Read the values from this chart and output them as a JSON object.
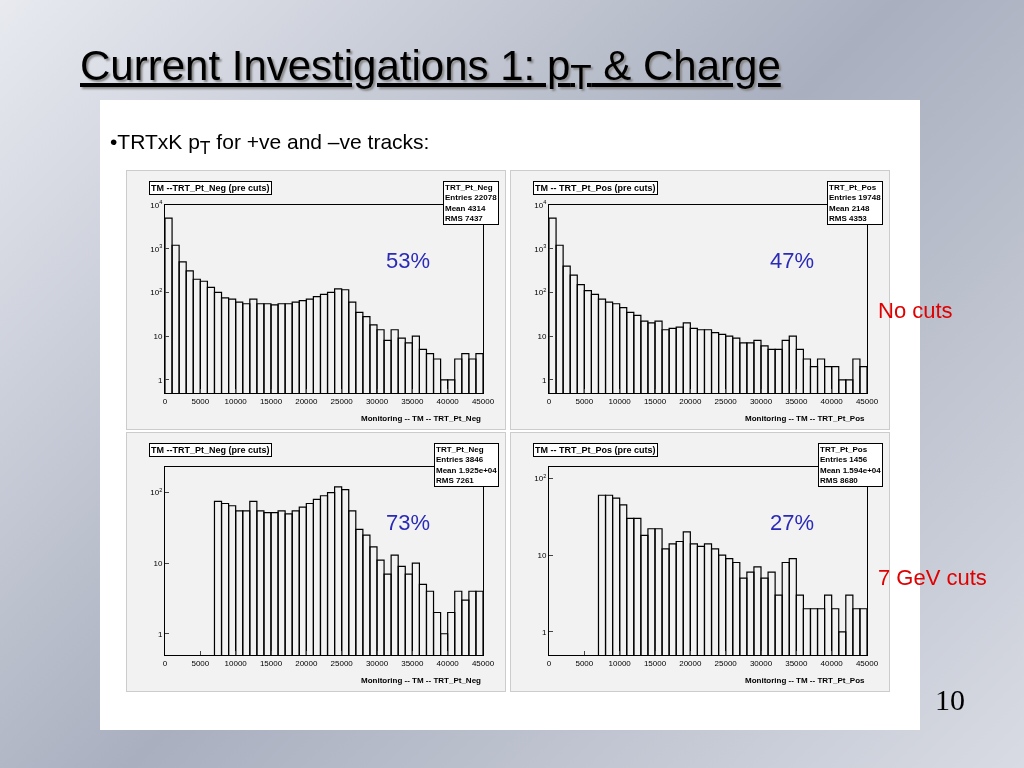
{
  "chart_data": [
    {
      "type": "other",
      "title": "Current Investigations 1: p$_{T}$ & Charge",
      "subtitle": "•TRTxK p$_{T}$ for +ve and –ve tracks:",
      "annotations": [
        "No cuts",
        "7 GeV cuts",
        "10"
      ]
    },
    {
      "type": "histogram",
      "title": "TM --TRT_Pt_Neg (pre cuts)",
      "xlabel": "Monitoring -- TM -- TRT_Pt_Neg",
      "log": "y",
      "grid": false,
      "bins": [
        0,
        1000,
        2000,
        3000,
        4000,
        5000,
        6000,
        7000,
        8000,
        9000,
        10000,
        11000,
        12000,
        13000,
        14000,
        15000,
        16000,
        17000,
        18000,
        19000,
        20000,
        21000,
        22000,
        23000,
        24000,
        25000,
        26000,
        27000,
        28000,
        29000,
        30000,
        31000,
        32000,
        33000,
        34000,
        35000,
        36000,
        37000,
        38000,
        39000,
        40000,
        41000,
        42000,
        43000,
        44000,
        45000
      ],
      "series": [
        {
          "color": "#000000",
          "values": [
            5000,
            1200,
            500,
            310,
            200,
            180,
            130,
            100,
            75,
            70,
            60,
            55,
            70,
            55,
            55,
            52,
            55,
            55,
            60,
            65,
            70,
            80,
            90,
            100,
            120,
            115,
            60,
            35,
            28,
            18,
            14,
            8,
            14,
            9,
            7,
            10,
            5,
            4,
            3,
            1,
            1,
            3,
            4,
            3,
            4
          ]
        }
      ],
      "xlim": [
        0,
        45000
      ],
      "xticks": [
        0,
        5000,
        10000,
        15000,
        20000,
        25000,
        30000,
        35000,
        40000,
        45000
      ],
      "ylim": [
        0.5,
        10000
      ],
      "yticks": [
        {
          "value": 1,
          "label": "1"
        },
        {
          "value": 10,
          "label": "10"
        },
        {
          "value": 100,
          "label": "10$^{2}$"
        },
        {
          "value": 1000,
          "label": "10$^{3}$"
        },
        {
          "value": 10000,
          "label": "10$^{4}$"
        }
      ],
      "annotations": [
        "TRT_Pt_Neg",
        "Entries 22078",
        "Mean 4314",
        "RMS 7437",
        "53%"
      ]
    },
    {
      "type": "histogram",
      "title": "TM -- TRT_Pt_Pos (pre cuts)",
      "xlabel": "Monitoring -- TM -- TRT_Pt_Pos",
      "log": "y",
      "grid": false,
      "bins": [
        0,
        1000,
        2000,
        3000,
        4000,
        5000,
        6000,
        7000,
        8000,
        9000,
        10000,
        11000,
        12000,
        13000,
        14000,
        15000,
        16000,
        17000,
        18000,
        19000,
        20000,
        21000,
        22000,
        23000,
        24000,
        25000,
        26000,
        27000,
        28000,
        29000,
        30000,
        31000,
        32000,
        33000,
        34000,
        35000,
        36000,
        37000,
        38000,
        39000,
        40000,
        41000,
        42000,
        43000,
        44000,
        45000
      ],
      "series": [
        {
          "color": "#000000",
          "values": [
            5000,
            1200,
            400,
            250,
            150,
            110,
            90,
            70,
            60,
            55,
            45,
            35,
            30,
            22,
            20,
            22,
            14,
            15,
            16,
            20,
            15,
            14,
            14,
            12,
            11,
            10,
            9,
            7,
            7,
            8,
            6,
            5,
            5,
            8,
            10,
            5,
            3,
            2,
            3,
            2,
            2,
            1,
            1,
            3,
            2
          ]
        }
      ],
      "xlim": [
        0,
        45000
      ],
      "xticks": [
        0,
        5000,
        10000,
        15000,
        20000,
        25000,
        30000,
        35000,
        40000,
        45000
      ],
      "ylim": [
        0.5,
        10000
      ],
      "yticks": [
        {
          "value": 1,
          "label": "1"
        },
        {
          "value": 10,
          "label": "10"
        },
        {
          "value": 100,
          "label": "10$^{2}$"
        },
        {
          "value": 1000,
          "label": "10$^{3}$"
        },
        {
          "value": 10000,
          "label": "10$^{4}$"
        }
      ],
      "annotations": [
        "TRT_Pt_Pos",
        "Entries 19748",
        "Mean 2148",
        "RMS 4353",
        "47%"
      ]
    },
    {
      "type": "histogram",
      "title": "TM --TRT_Pt_Neg (pre cuts)",
      "xlabel": "Monitoring -- TM -- TRT_Pt_Neg",
      "log": "y",
      "grid": false,
      "bins": [
        7000,
        8000,
        9000,
        10000,
        11000,
        12000,
        13000,
        14000,
        15000,
        16000,
        17000,
        18000,
        19000,
        20000,
        21000,
        22000,
        23000,
        24000,
        25000,
        26000,
        27000,
        28000,
        29000,
        30000,
        31000,
        32000,
        33000,
        34000,
        35000,
        36000,
        37000,
        38000,
        39000,
        40000,
        41000,
        42000,
        43000,
        44000,
        45000
      ],
      "series": [
        {
          "color": "#000000",
          "values": [
            75,
            70,
            65,
            55,
            55,
            75,
            55,
            52,
            52,
            55,
            50,
            55,
            62,
            70,
            80,
            90,
            100,
            120,
            110,
            55,
            30,
            25,
            17,
            11,
            7,
            13,
            9,
            7,
            10,
            5,
            4,
            2,
            1,
            2,
            4,
            3,
            4,
            4
          ]
        }
      ],
      "xlim": [
        0,
        45000
      ],
      "xticks": [
        0,
        5000,
        10000,
        15000,
        20000,
        25000,
        30000,
        35000,
        40000,
        45000
      ],
      "ylim": [
        0.5,
        230
      ],
      "yticks": [
        {
          "value": 1,
          "label": "1"
        },
        {
          "value": 10,
          "label": "10"
        },
        {
          "value": 100,
          "label": "10$^{2}$"
        }
      ],
      "annotations": [
        "TRT_Pt_Neg",
        "Entries 3846",
        "Mean 1.925e+04",
        "RMS 7261",
        "73%"
      ]
    },
    {
      "type": "histogram",
      "title": "TM -- TRT_Pt_Pos (pre cuts)",
      "xlabel": "Monitoring -- TM -- TRT_Pt_Pos",
      "log": "y",
      "grid": false,
      "bins": [
        7000,
        8000,
        9000,
        10000,
        11000,
        12000,
        13000,
        14000,
        15000,
        16000,
        17000,
        18000,
        19000,
        20000,
        21000,
        22000,
        23000,
        24000,
        25000,
        26000,
        27000,
        28000,
        29000,
        30000,
        31000,
        32000,
        33000,
        34000,
        35000,
        36000,
        37000,
        38000,
        39000,
        40000,
        41000,
        42000,
        43000,
        44000,
        45000
      ],
      "series": [
        {
          "color": "#000000",
          "values": [
            60,
            60,
            55,
            45,
            30,
            30,
            18,
            22,
            22,
            12,
            14,
            15,
            20,
            14,
            13,
            14,
            12,
            10,
            9,
            8,
            5,
            6,
            7,
            5,
            6,
            3,
            8,
            9,
            3,
            2,
            2,
            2,
            3,
            2,
            1,
            3,
            2,
            2
          ]
        }
      ],
      "xlim": [
        0,
        45000
      ],
      "xticks": [
        0,
        5000,
        10000,
        15000,
        20000,
        25000,
        30000,
        35000,
        40000,
        45000
      ],
      "ylim": [
        0.5,
        140
      ],
      "yticks": [
        {
          "value": 1,
          "label": "1"
        },
        {
          "value": 10,
          "label": "10"
        },
        {
          "value": 100,
          "label": "10$^{2}$"
        }
      ],
      "annotations": [
        "TRT_Pt_Pos",
        "Entries 1456",
        "Mean 1.594e+04",
        "RMS 8680",
        "27%"
      ]
    }
  ]
}
